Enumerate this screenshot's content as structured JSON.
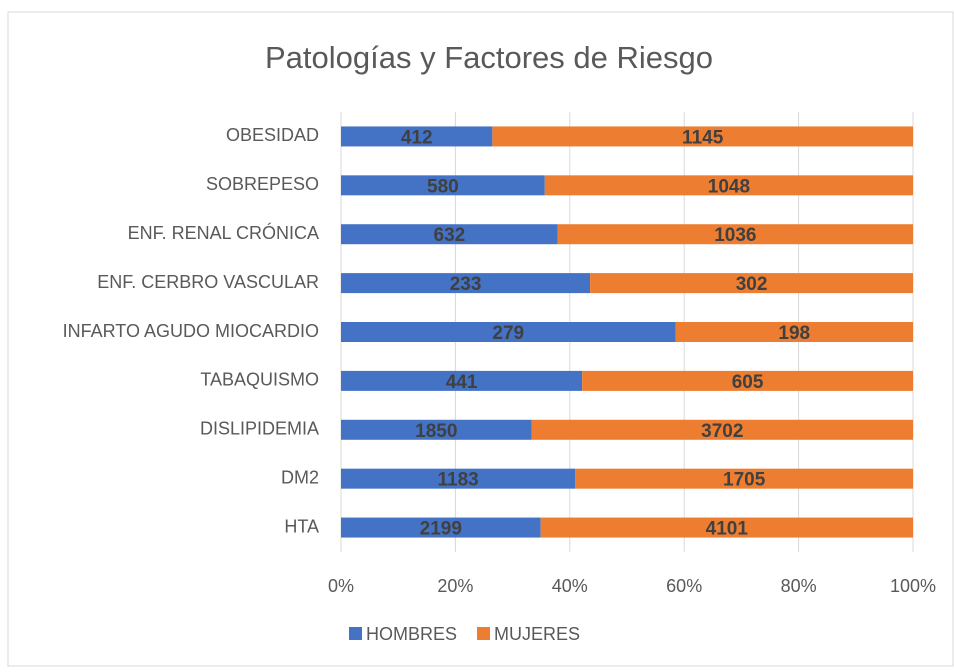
{
  "chart_data": {
    "type": "bar",
    "orientation": "horizontal",
    "stacking": "percent",
    "title": "Patologías y Factores de Riesgo",
    "categories": [
      "OBESIDAD",
      "SOBREPESO",
      "ENF. RENAL CRÓNICA",
      "ENF. CERBRO VASCULAR",
      "INFARTO AGUDO MIOCARDIO",
      "TABAQUISMO",
      "DISLIPIDEMIA",
      "DM2",
      "HTA"
    ],
    "series": [
      {
        "name": "HOMBRES",
        "color": "#4472c4",
        "values": [
          412,
          580,
          632,
          233,
          279,
          441,
          1850,
          1183,
          2199
        ]
      },
      {
        "name": "MUJERES",
        "color": "#ed7d31",
        "values": [
          1145,
          1048,
          1036,
          302,
          198,
          605,
          3702,
          1705,
          4101
        ]
      }
    ],
    "xlim": [
      0,
      100
    ],
    "xticks": [
      {
        "value": 0,
        "label": "0%"
      },
      {
        "value": 20,
        "label": "20%"
      },
      {
        "value": 40,
        "label": "40%"
      },
      {
        "value": 60,
        "label": "60%"
      },
      {
        "value": 80,
        "label": "80%"
      },
      {
        "value": 100,
        "label": "100%"
      }
    ],
    "grid": true,
    "legend": "bottom"
  }
}
